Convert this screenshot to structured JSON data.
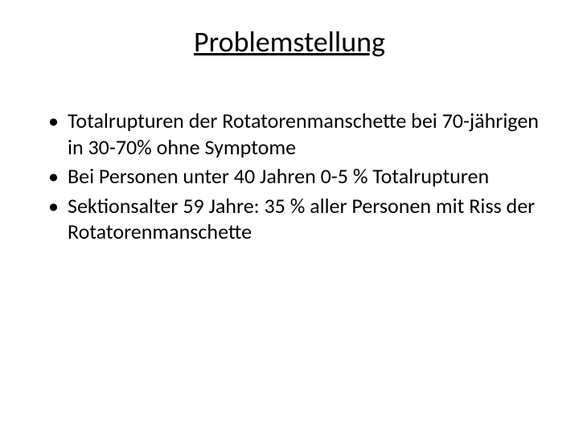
{
  "slide": {
    "title": "Problemstellung",
    "title_fontsize": 36,
    "body_fontsize": 26,
    "line_height": 1.25,
    "background_color": "#ffffff",
    "text_color": "#000000",
    "bullets": [
      " Totalrupturen der Rotatorenmanschette bei 70-jährigen in 30-70% ohne Symptome",
      "Bei Personen unter 40 Jahren 0-5 % Totalrupturen",
      "Sektionsalter 59 Jahre: 35 % aller Personen mit Riss der Rotatorenmanschette"
    ]
  }
}
